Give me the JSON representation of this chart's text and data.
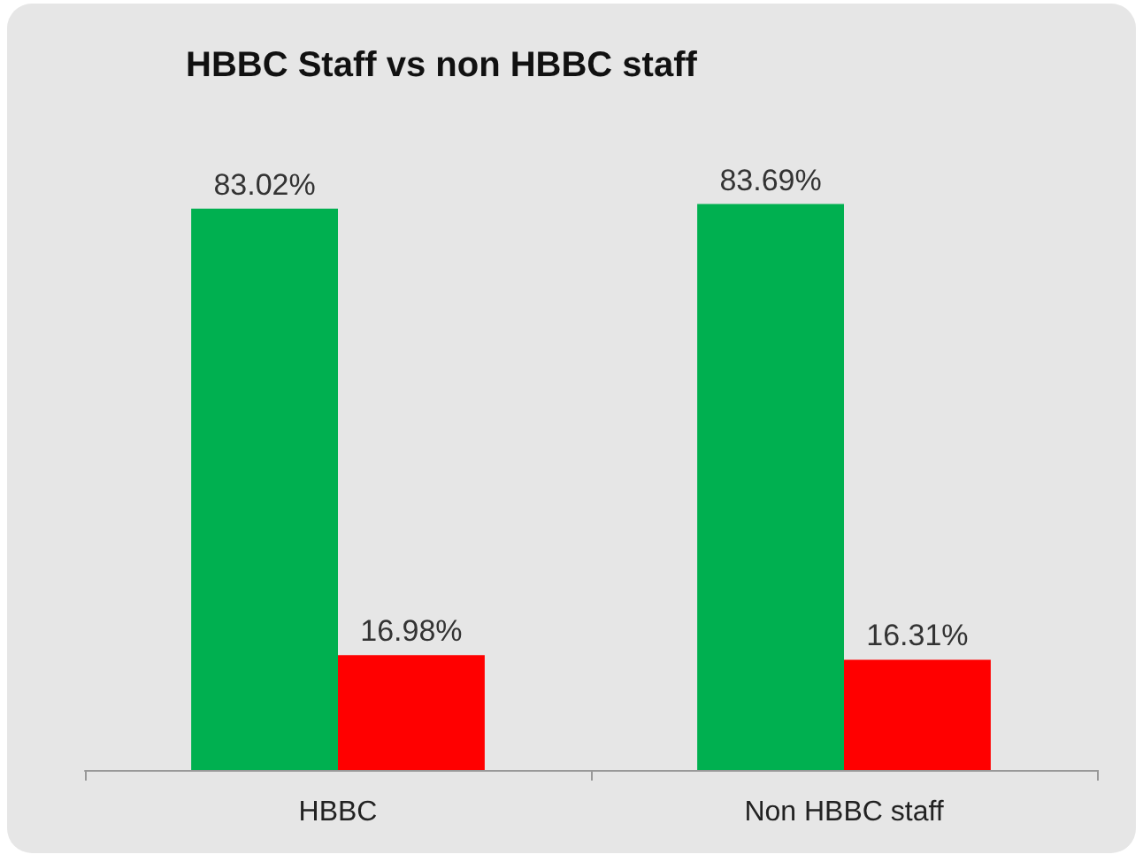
{
  "chart_data": {
    "type": "bar",
    "title": "HBBC Staff vs non HBBC staff",
    "categories": [
      "HBBC",
      "Non HBBC staff"
    ],
    "series": [
      {
        "color": "#00b050",
        "values": [
          83.02,
          83.69
        ],
        "value_labels": [
          "83.02%",
          "83.69%"
        ]
      },
      {
        "color": "#ff0000",
        "values": [
          16.98,
          16.31
        ],
        "value_labels": [
          "16.98%",
          "16.31%"
        ]
      }
    ]
  }
}
